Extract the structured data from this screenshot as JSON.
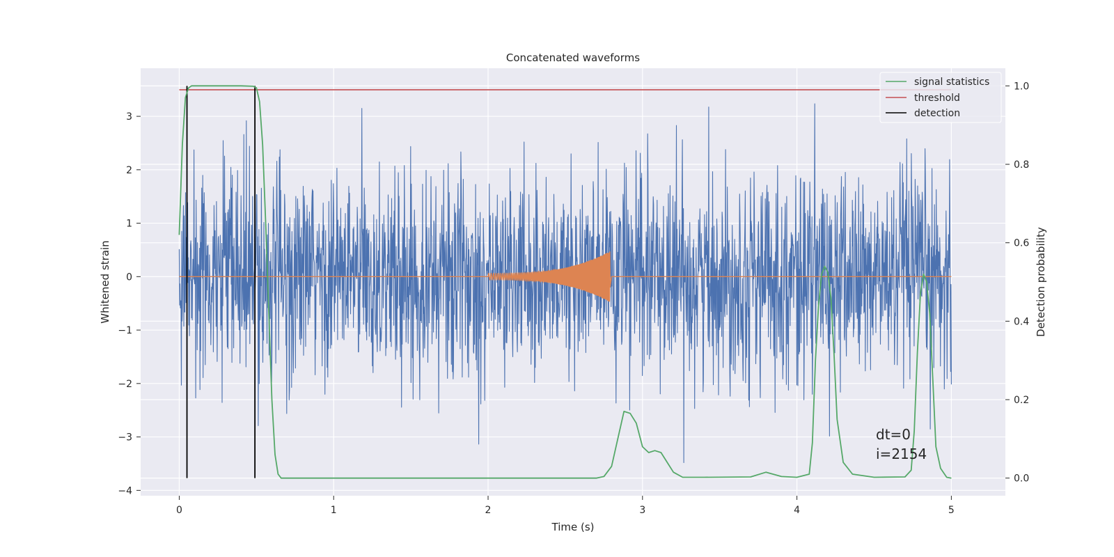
{
  "chart_data": {
    "type": "line",
    "title": "Concatenated waveforms",
    "xlabel": "Time (s)",
    "ylabel": "Whitened strain",
    "y2label": "Detection probability",
    "xlim": [
      -0.25,
      5.35
    ],
    "ylim": [
      -4.1,
      3.9
    ],
    "y2lim": [
      -0.045,
      1.045
    ],
    "xticks": [
      0,
      1,
      2,
      3,
      4,
      5
    ],
    "yticks": [
      -4,
      -3,
      -2,
      -1,
      0,
      1,
      2,
      3
    ],
    "y2ticks": [
      0.0,
      0.2,
      0.4,
      0.6,
      0.8,
      1.0
    ],
    "xtick_labels": [
      "0",
      "1",
      "2",
      "3",
      "4",
      "5"
    ],
    "ytick_labels": [
      "−4",
      "−3",
      "−2",
      "−1",
      "0",
      "1",
      "2",
      "3"
    ],
    "y2tick_labels": [
      "0.0",
      "0.2",
      "0.4",
      "0.6",
      "0.8",
      "1.0"
    ],
    "grid": true,
    "legend_position": "top-right",
    "colors": {
      "strain": "#4c72b0",
      "waveform": "#dd8452",
      "signal_statistics": "#55a868",
      "threshold": "#c44e52",
      "detection": "#000000",
      "background": "#eaeaf2",
      "grid": "#ffffff"
    },
    "series": [
      {
        "name": "signal statistics",
        "axis": "right",
        "x": [
          0.0,
          0.02,
          0.04,
          0.06,
          0.08,
          0.1,
          0.2,
          0.3,
          0.4,
          0.48,
          0.5,
          0.52,
          0.54,
          0.56,
          0.58,
          0.6,
          0.62,
          0.64,
          0.66,
          0.7,
          0.8,
          1.0,
          1.5,
          2.0,
          2.5,
          2.7,
          2.75,
          2.8,
          2.84,
          2.88,
          2.92,
          2.96,
          3.0,
          3.04,
          3.08,
          3.12,
          3.16,
          3.2,
          3.26,
          3.4,
          3.7,
          3.8,
          3.9,
          4.0,
          4.08,
          4.1,
          4.12,
          4.14,
          4.16,
          4.18,
          4.2,
          4.22,
          4.24,
          4.26,
          4.3,
          4.36,
          4.5,
          4.7,
          4.74,
          4.76,
          4.78,
          4.8,
          4.82,
          4.84,
          4.86,
          4.88,
          4.9,
          4.93,
          4.97,
          5.0
        ],
        "y": [
          0.62,
          0.85,
          0.97,
          0.995,
          1.0,
          1.0,
          1.0,
          1.0,
          1.0,
          0.999,
          0.995,
          0.96,
          0.85,
          0.65,
          0.42,
          0.2,
          0.06,
          0.01,
          0.0,
          0.0,
          0.0,
          0.0,
          0.0,
          0.0,
          0.0,
          0.0,
          0.004,
          0.03,
          0.1,
          0.17,
          0.165,
          0.14,
          0.08,
          0.065,
          0.07,
          0.065,
          0.04,
          0.015,
          0.002,
          0.002,
          0.003,
          0.015,
          0.004,
          0.002,
          0.01,
          0.09,
          0.3,
          0.44,
          0.52,
          0.54,
          0.525,
          0.46,
          0.32,
          0.15,
          0.04,
          0.01,
          0.002,
          0.003,
          0.02,
          0.12,
          0.32,
          0.47,
          0.52,
          0.5,
          0.42,
          0.25,
          0.08,
          0.025,
          0.002,
          0.0
        ]
      },
      {
        "name": "threshold",
        "axis": "right",
        "x": [
          0.0,
          5.0
        ],
        "y": [
          0.99,
          0.99
        ]
      },
      {
        "name": "detection",
        "axis": "right",
        "x": [
          0.05,
          0.49
        ],
        "y_range": [
          0.0,
          1.0
        ]
      },
      {
        "name": "",
        "axis": "left",
        "kind": "whitened_noise",
        "x_range": [
          0.0,
          5.0
        ],
        "y_range": [
          -3.7,
          3.5
        ]
      },
      {
        "name": "",
        "axis": "left",
        "kind": "chirp_waveform",
        "x_range": [
          2.0,
          2.79
        ],
        "y_peak": 0.48
      }
    ],
    "annotations": [
      "dt=0",
      "i=2154"
    ]
  }
}
